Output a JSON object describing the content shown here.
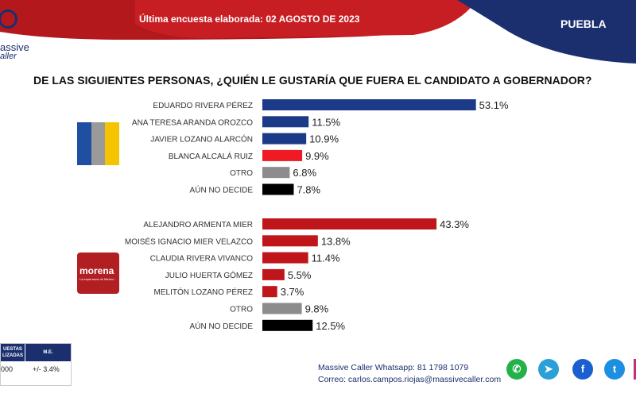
{
  "header": {
    "survey_date": "Última encuesta elaborada: 02 AGOSTO  DE 2023",
    "state": "PUEBLA",
    "brand_line1": "assive",
    "brand_line2": "aller"
  },
  "question": "DE LAS SIGUIENTES PERSONAS, ¿QUIÉN LE GUSTARÍA QUE FUERA EL CANDIDATO  A GOBERNADOR?",
  "party_logos": {
    "morena_name": "morena",
    "morena_tagline": "La esperanza de México"
  },
  "sample_box": {
    "col1_header": "UESTAS\nLIZADAS",
    "col2_header": "M.E.",
    "col1_value": "000",
    "col2_value": "+/- 3.4%"
  },
  "footer": {
    "whatsapp": "Massive Caller Whatsapp: 81 1798  1079",
    "email": "Correo: carlos.campos.riojas@massivecaller.com"
  },
  "social_icons": [
    "whatsapp-icon",
    "telegram-icon",
    "facebook-icon",
    "twitter-icon",
    "instagram-icon"
  ],
  "colors": {
    "navy": "#1b3a87",
    "red": "#c0161b",
    "bright_red": "#ef1b24",
    "gray": "#8c8c8c",
    "black": "#000000"
  },
  "chart_data": {
    "type": "bar",
    "orientation": "horizontal",
    "xlim": [
      0,
      60
    ],
    "groups": [
      {
        "party": "PAN-PRI-PRD",
        "categories": [
          "EDUARDO RIVERA PÉREZ",
          "ANA TERESA ARANDA OROZCO",
          "JAVIER LOZANO ALARCÓN",
          "BLANCA ALCALÁ RUIZ",
          "OTRO",
          "AÚN NO DECIDE"
        ],
        "values": [
          53.1,
          11.5,
          10.9,
          9.9,
          6.8,
          7.8
        ],
        "labels": [
          "53.1%",
          "11.5%",
          "10.9%",
          "9.9%",
          "6.8%",
          "7.8%"
        ],
        "colors": [
          "#1b3a87",
          "#1b3a87",
          "#1b3a87",
          "#ef1b24",
          "#8c8c8c",
          "#000000"
        ]
      },
      {
        "party": "MORENA",
        "categories": [
          "ALEJANDRO ARMENTA MIER",
          "MOISÉS IGNACIO MIER VELAZCO",
          "CLAUDIA RIVERA VIVANCO",
          "JULIO HUERTA GÓMEZ",
          "MELITÓN LOZANO PÉREZ",
          "OTRO",
          "AÚN NO DECIDE"
        ],
        "values": [
          43.3,
          13.8,
          11.4,
          5.5,
          3.7,
          9.8,
          12.5
        ],
        "labels": [
          "43.3%",
          "13.8%",
          "11.4%",
          "5.5%",
          "3.7%",
          "9.8%",
          "12.5%"
        ],
        "colors": [
          "#c0161b",
          "#c0161b",
          "#c0161b",
          "#c0161b",
          "#c0161b",
          "#8c8c8c",
          "#000000"
        ]
      }
    ]
  }
}
